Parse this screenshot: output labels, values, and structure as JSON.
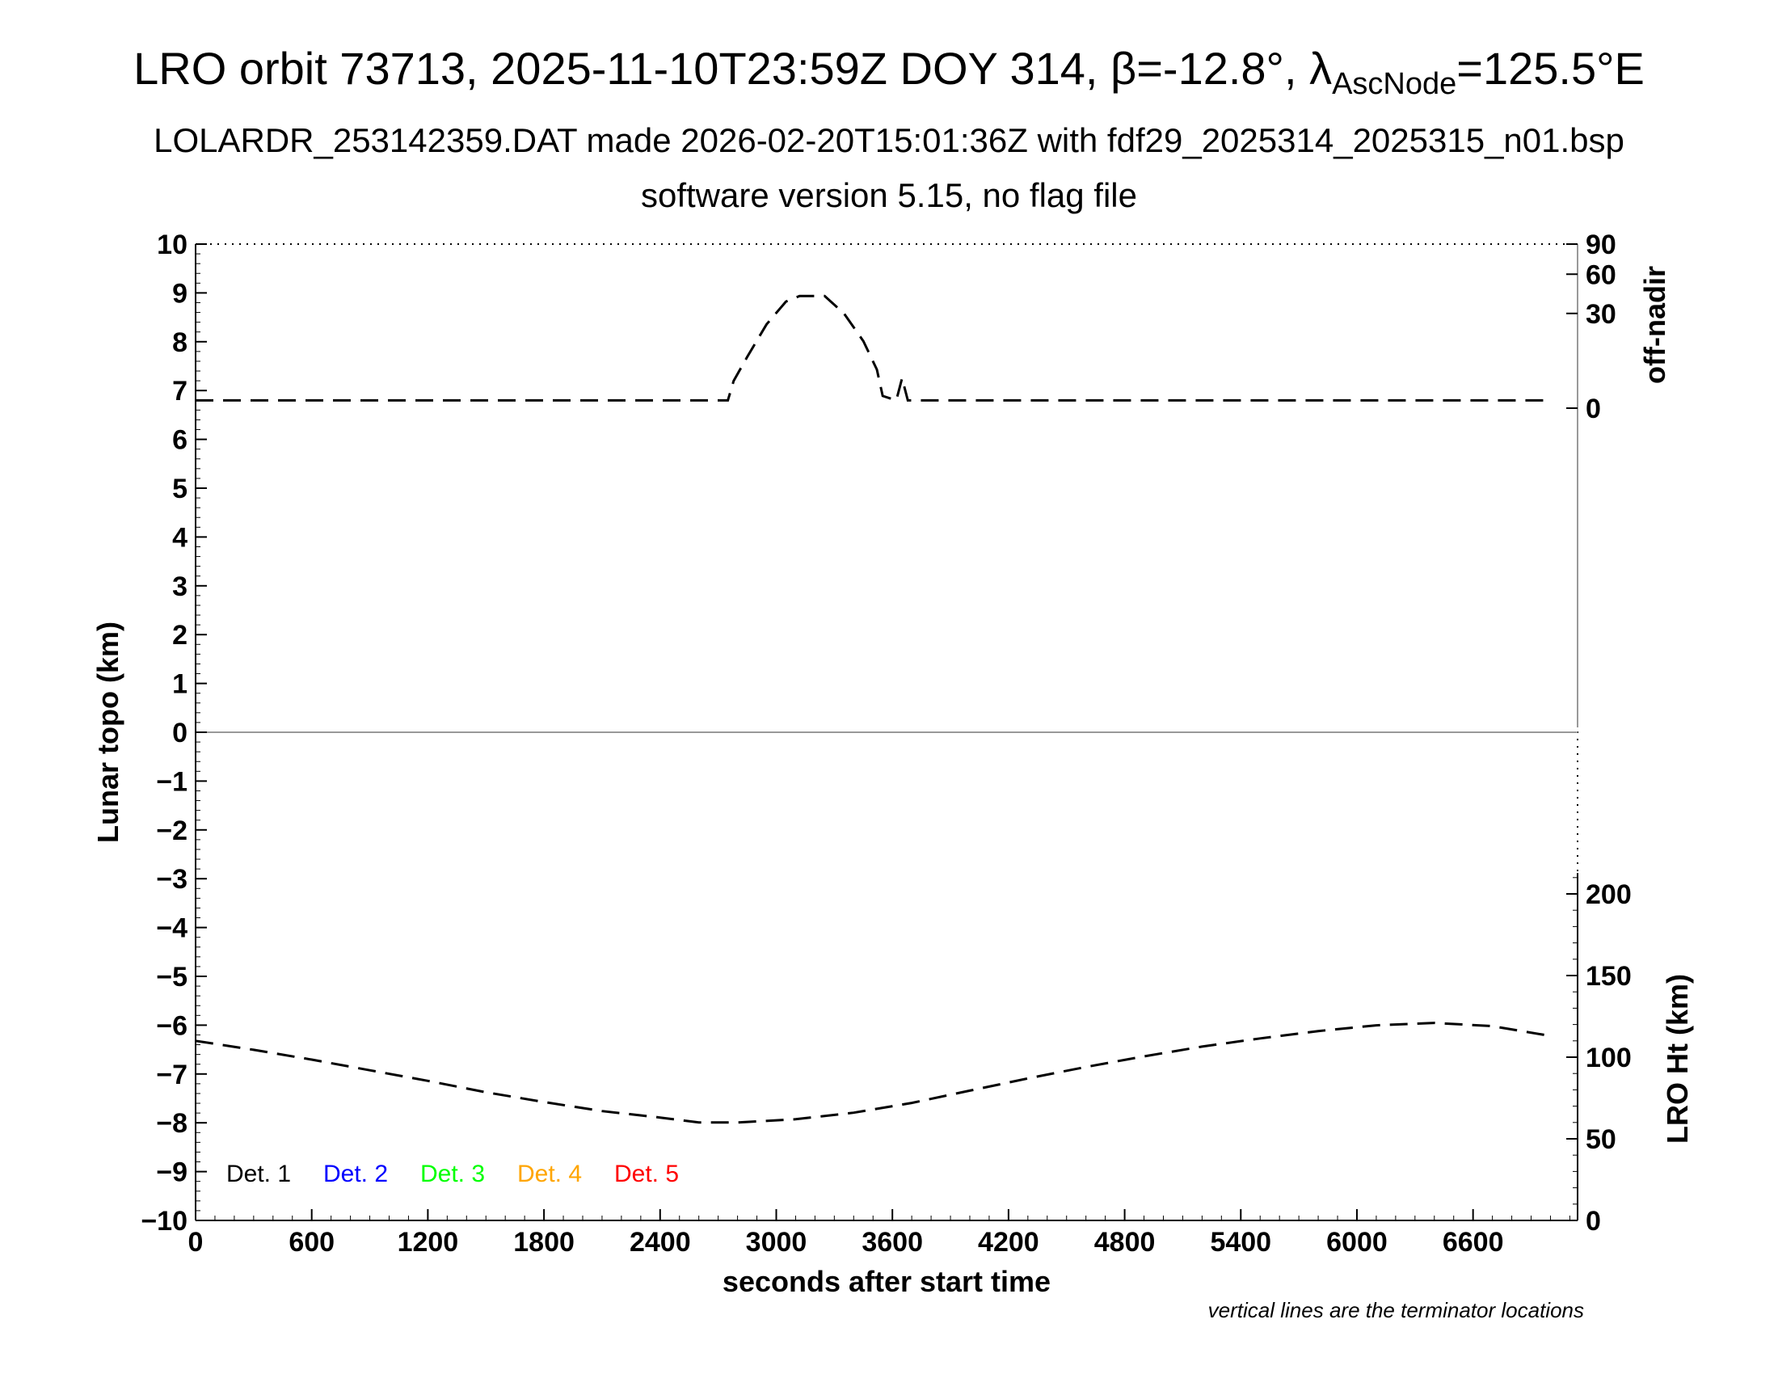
{
  "header": {
    "title_main": "LRO orbit 73713, 2025-11-10T23:59Z DOY 314, β=-12.8°, λ",
    "title_sub": "AscNode",
    "title_end": "=125.5°E",
    "subtitle1": "LOLARDR_253142359.DAT made 2026-02-20T15:01:36Z with fdf29_2025314_2025315_n01.bsp",
    "subtitle2": "software version 5.15, no flag file"
  },
  "footnote": "vertical lines are the terminator locations",
  "chart_data": {
    "type": "line",
    "xlabel": "seconds after start time",
    "ylabel": "Lunar topo (km)",
    "xlim": [
      0,
      7140
    ],
    "ylim": [
      -10,
      10
    ],
    "x_ticks": [
      0,
      600,
      1200,
      1800,
      2400,
      3000,
      3600,
      4200,
      4800,
      5400,
      6000,
      6600
    ],
    "y_ticks": [
      10,
      9,
      8,
      7,
      6,
      5,
      4,
      3,
      2,
      1,
      0,
      -1,
      -2,
      -3,
      -4,
      -5,
      -6,
      -7,
      -8,
      -9,
      -10
    ],
    "y_tick_labels": [
      "10",
      "9",
      "8",
      "7",
      "6",
      "5",
      "4",
      "3",
      "2",
      "1",
      "0",
      "−1",
      "−2",
      "−3",
      "−4",
      "−5",
      "−6",
      "−7",
      "−8",
      "−9",
      "−10"
    ],
    "right_axis_top": {
      "label": "off-nadir",
      "ticks": [
        90,
        60,
        30,
        0
      ],
      "tick_labels": [
        "90",
        "60",
        "30",
        "0"
      ],
      "ylim": [
        0,
        90
      ]
    },
    "right_axis_bottom": {
      "label": "LRO Ht (km)",
      "ticks": [
        200,
        150,
        100,
        50,
        0
      ],
      "tick_labels": [
        "200",
        "150",
        "100",
        "50",
        "0"
      ],
      "ylim": [
        0,
        200
      ]
    },
    "legend": {
      "placement": "bottom-left",
      "entries": [
        {
          "label": "Det. 1",
          "color": "#000000"
        },
        {
          "label": "Det. 2",
          "color": "#0000ff"
        },
        {
          "label": "Det. 3",
          "color": "#00ff00"
        },
        {
          "label": "Det. 4",
          "color": "#ffa500"
        },
        {
          "label": "Det. 5",
          "color": "#ff0000"
        }
      ]
    },
    "series": [
      {
        "axis": "off-nadir",
        "style": "dashed",
        "x": [
          0,
          2750,
          2780,
          2850,
          2950,
          3050,
          3120,
          3250,
          3350,
          3450,
          3520,
          3550,
          3620,
          3650,
          3680,
          3720,
          7000
        ],
        "y": [
          0.2,
          0.2,
          2.5,
          8.8,
          23.5,
          38.0,
          42.0,
          42.0,
          30.0,
          15.0,
          5.0,
          0.5,
          0.2,
          3.0,
          0.2,
          0.2,
          0.2
        ]
      },
      {
        "axis": "LRO Ht (km)",
        "style": "dashed",
        "x": [
          0,
          300,
          600,
          900,
          1200,
          1500,
          1800,
          2100,
          2400,
          2600,
          2800,
          3100,
          3400,
          3700,
          4000,
          4300,
          4600,
          4900,
          5200,
          5500,
          5800,
          6100,
          6400,
          6700,
          7000
        ],
        "y": [
          110,
          104.5,
          98.5,
          92,
          85.5,
          78.5,
          72.5,
          67,
          63,
          60,
          60,
          62,
          66,
          72,
          79.5,
          87,
          94,
          100.5,
          106.5,
          111.5,
          116,
          119.5,
          121,
          119,
          113
        ]
      }
    ]
  }
}
